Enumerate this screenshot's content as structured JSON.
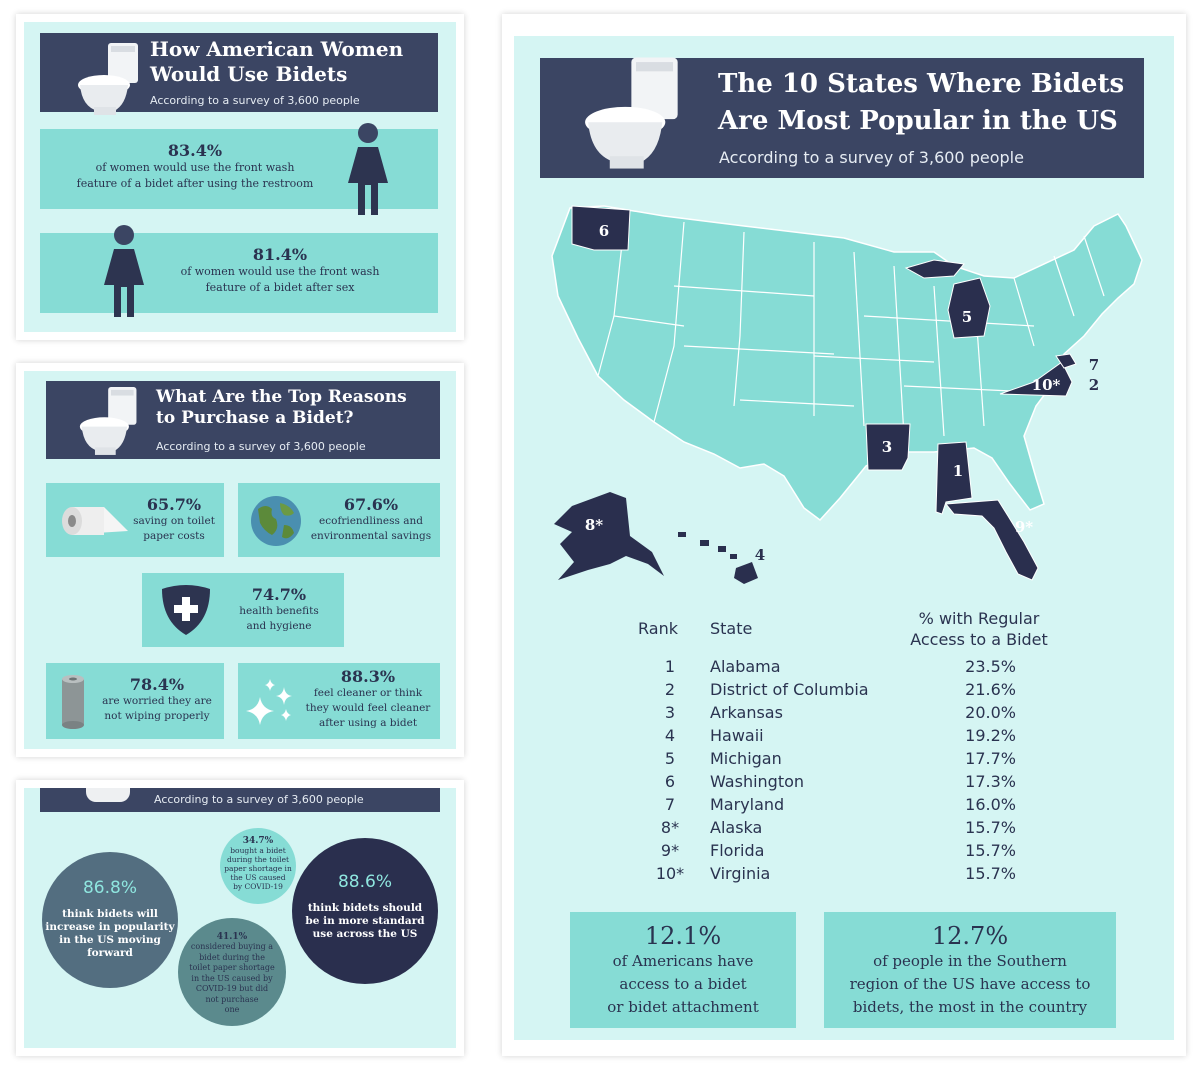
{
  "women": {
    "title_line1": "How American Women",
    "title_line2": "Would Use Bidets",
    "subtitle": "According to a survey of 3,600 people",
    "stat1": {
      "pct": "83.4%",
      "line1": "of women would use the front wash",
      "line2": "feature of a bidet after using the restroom"
    },
    "stat2": {
      "pct": "81.4%",
      "line1": "of women would use the front wash",
      "line2": "feature of a bidet after sex"
    }
  },
  "reasons": {
    "title_line1": "What Are the Top Reasons",
    "title_line2": "to Purchase a Bidet?",
    "subtitle": "According to a survey of 3,600 people",
    "items": [
      {
        "pct": "65.7%",
        "line1": "saving on toilet",
        "line2": "paper costs",
        "line3": ""
      },
      {
        "pct": "67.6%",
        "line1": "ecofriendliness and",
        "line2": "environmental savings",
        "line3": ""
      },
      {
        "pct": "74.7%",
        "line1": "health benefits",
        "line2": "and hygiene",
        "line3": ""
      },
      {
        "pct": "78.4%",
        "line1": "are worried they are",
        "line2": "not wiping properly",
        "line3": ""
      },
      {
        "pct": "88.3%",
        "line1": "feel cleaner or think",
        "line2": "they would feel cleaner",
        "line3": "after using a bidet"
      }
    ]
  },
  "future": {
    "subtitle": "According to a survey of 3,600 people",
    "c1": {
      "pct": "86.8%",
      "lines": [
        "think bidets will",
        "increase in popularity",
        "in the US moving",
        "forward"
      ]
    },
    "c2": {
      "pct": "34.7%",
      "lines": [
        "bought a bidet",
        "during the toilet",
        "paper shortage in",
        "the US caused",
        "by COVID-19"
      ]
    },
    "c3": {
      "pct": "41.1%",
      "lines": [
        "considered buying a",
        "bidet during the",
        "toilet paper shortage",
        "in the US caused by",
        "COVID-19 but did",
        "not purchase",
        "one"
      ]
    },
    "c4": {
      "pct": "88.6%",
      "lines": [
        "think bidets should",
        "be in more standard",
        "use across the US"
      ]
    }
  },
  "states": {
    "title_line1": "The 10 States Where Bidets",
    "title_line2": "Are Most Popular in the US",
    "subtitle": "According to a survey of 3,600 people",
    "map_labels": [
      "6",
      "5",
      "7",
      "10*",
      "2",
      "3",
      "1",
      "8*",
      "4",
      "9*"
    ],
    "table": {
      "col_rank": "Rank",
      "col_state": "State",
      "col_pct_line1": "% with Regular",
      "col_pct_line2": "Access to a Bidet",
      "rows": [
        {
          "rank": "1",
          "state": "Alabama",
          "pct": "23.5%"
        },
        {
          "rank": "2",
          "state": "District of Columbia",
          "pct": "21.6%"
        },
        {
          "rank": "3",
          "state": "Arkansas",
          "pct": "20.0%"
        },
        {
          "rank": "4",
          "state": "Hawaii",
          "pct": "19.2%"
        },
        {
          "rank": "5",
          "state": "Michigan",
          "pct": "17.7%"
        },
        {
          "rank": "6",
          "state": "Washington",
          "pct": "17.3%"
        },
        {
          "rank": "7",
          "state": "Maryland",
          "pct": "16.0%"
        },
        {
          "rank": "8*",
          "state": "Alaska",
          "pct": "15.7%"
        },
        {
          "rank": "9*",
          "state": "Florida",
          "pct": "15.7%"
        },
        {
          "rank": "10*",
          "state": "Virginia",
          "pct": "15.7%"
        }
      ]
    },
    "box1": {
      "pct": "12.1%",
      "lines": [
        "of Americans have",
        "access to a bidet",
        "or bidet attachment"
      ]
    },
    "box2": {
      "pct": "12.7%",
      "lines": [
        "of people in the Southern",
        "region of the US have access to",
        "bidets, the most in the country"
      ]
    }
  }
}
